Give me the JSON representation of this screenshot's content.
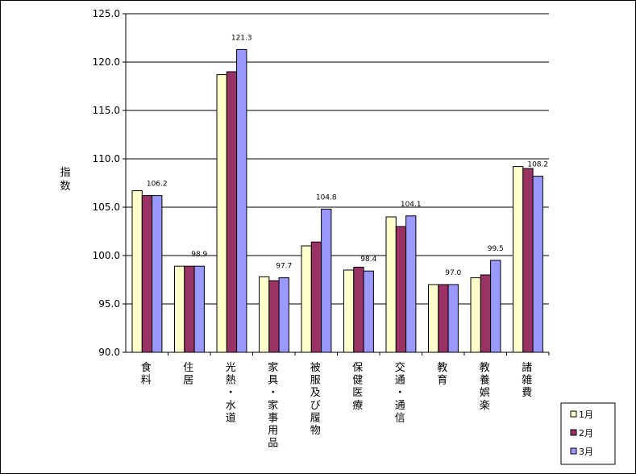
{
  "chart_data": {
    "type": "bar",
    "ylabel": "指数",
    "ylim": [
      90,
      125
    ],
    "yticks": [
      "90.0",
      "95.0",
      "100.0",
      "105.0",
      "110.0",
      "115.0",
      "120.0",
      "125.0"
    ],
    "grid": true,
    "legend_position": "bottom-right",
    "categories": [
      "食料",
      "住居",
      "光熱・水道",
      "家具・家事用品",
      "被服及び履物",
      "保健医療",
      "交通・通信",
      "教育",
      "教養娯楽",
      "諸雑費"
    ],
    "series": [
      {
        "name": "1月",
        "color": "#ffffcc",
        "values": [
          106.7,
          98.9,
          118.7,
          97.8,
          101.0,
          98.5,
          104.0,
          97.0,
          97.7,
          109.2
        ]
      },
      {
        "name": "2月",
        "color": "#993366",
        "values": [
          106.2,
          98.9,
          119.0,
          97.4,
          101.4,
          98.8,
          103.0,
          97.0,
          98.0,
          109.0
        ]
      },
      {
        "name": "3月",
        "color": "#9999ff",
        "values": [
          106.2,
          98.9,
          121.3,
          97.7,
          104.8,
          98.4,
          104.1,
          97.0,
          99.5,
          108.2
        ]
      }
    ],
    "data_labels": {
      "series_index": 2,
      "labels": [
        "106.2",
        "98.9",
        "121.3",
        "97.7",
        "104.8",
        "98.4",
        "104.1",
        "97.0",
        "99.5",
        "108.2"
      ]
    }
  }
}
